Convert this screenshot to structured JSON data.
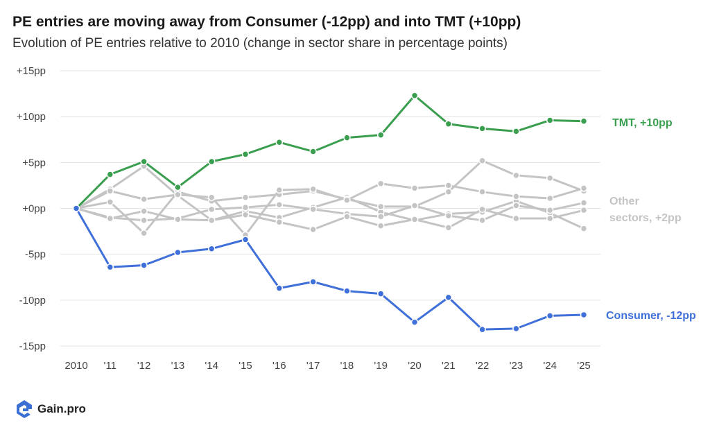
{
  "header": {
    "title": "PE entries are moving away from Consumer (-12pp) and into TMT (+10pp)",
    "subtitle": "Evolution of PE entries relative to 2010 (change in sector share in percentage points)"
  },
  "brand": {
    "name": "Gain.pro",
    "icon": "gain-pro-logo-icon",
    "color": "#3b6fd4"
  },
  "chart_data": {
    "type": "line",
    "x": [
      "2010",
      "'11",
      "'12",
      "'13",
      "'14",
      "'15",
      "'16",
      "'17",
      "'18",
      "'19",
      "'20",
      "'21",
      "'22",
      "'23",
      "'24",
      "'25"
    ],
    "yticks": [
      15,
      10,
      5,
      0,
      -5,
      -10,
      -15
    ],
    "ytick_labels": [
      "+15pp",
      "+10pp",
      "+5pp",
      "+0pp",
      "-5pp",
      "-10pp",
      "-15pp"
    ],
    "ylim": [
      -15,
      15
    ],
    "grid": true,
    "series": [
      {
        "key": "other1",
        "name": "",
        "color": "#c4c4c4",
        "values": [
          0,
          2.1,
          4.6,
          1.4,
          -1.3,
          -0.3,
          -1.0,
          0.1,
          1.2,
          -0.4,
          -1.3,
          -0.6,
          -0.4,
          0.8,
          -0.5,
          -2.2
        ]
      },
      {
        "key": "other2",
        "name": "",
        "color": "#c4c4c4",
        "values": [
          0,
          0.7,
          -2.7,
          1.8,
          0.8,
          1.2,
          1.5,
          1.9,
          1.0,
          0.2,
          0.2,
          1.8,
          5.2,
          3.6,
          3.3,
          1.9
        ]
      },
      {
        "key": "other3",
        "name": "",
        "color": "#c4c4c4",
        "values": [
          0,
          1.9,
          1.0,
          1.5,
          1.2,
          -2.9,
          2.0,
          2.1,
          0.9,
          2.7,
          2.2,
          2.5,
          1.8,
          1.3,
          1.1,
          2.2
        ]
      },
      {
        "key": "other4",
        "name": "",
        "color": "#c4c4c4",
        "values": [
          0,
          -1.0,
          -1.3,
          -1.1,
          -0.1,
          0.1,
          0.4,
          -0.1,
          -0.6,
          -0.9,
          0.3,
          -0.8,
          -1.3,
          0.3,
          -0.2,
          0.6
        ]
      },
      {
        "key": "other5",
        "name": "",
        "color": "#c4c4c4",
        "values": [
          0,
          -1.1,
          -0.3,
          -1.2,
          -1.3,
          -0.7,
          -1.5,
          -2.3,
          -0.9,
          -1.9,
          -1.2,
          -2.1,
          -0.1,
          -1.1,
          -1.1,
          -0.2
        ]
      },
      {
        "key": "tmt",
        "name": "TMT, +10pp",
        "color": "#3a9e4f",
        "values": [
          0,
          3.7,
          5.1,
          2.3,
          5.1,
          5.9,
          7.2,
          6.2,
          7.7,
          8.0,
          12.3,
          9.2,
          8.7,
          8.4,
          9.6,
          9.5
        ]
      },
      {
        "key": "consumer",
        "name": "Consumer, -12pp",
        "color": "#3f6fd8",
        "values": [
          0,
          -6.4,
          -6.2,
          -4.8,
          -4.4,
          -3.4,
          -8.7,
          -8.0,
          -9.0,
          -9.3,
          -12.4,
          -9.7,
          -13.2,
          -13.1,
          -11.7,
          -11.6
        ]
      }
    ],
    "labels": [
      {
        "key": "tmt",
        "lines": [
          "TMT, +10pp"
        ],
        "color": "#3a9e4f"
      },
      {
        "key": "other",
        "lines": [
          "Other",
          "sectors, +2pp"
        ],
        "color": "#c4c4c4"
      },
      {
        "key": "consumer",
        "lines": [
          "Consumer, -12pp"
        ],
        "color": "#3f6fd8"
      }
    ]
  }
}
